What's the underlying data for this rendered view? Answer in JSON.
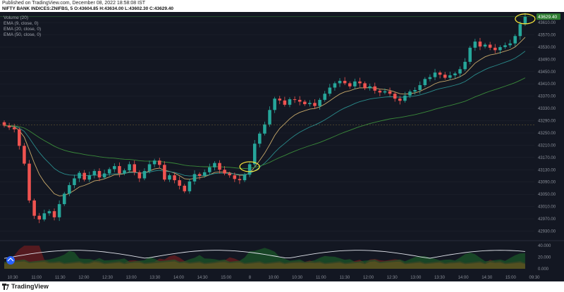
{
  "header": {
    "published": "Published on TradingView.com, December 08, 2022 18:58:08 IST",
    "symbol_line": "NIFTY BANK INDICES:ZNIFBS, 5  O:43604.85 H:43634.00 L:43602.30 C:43629.40"
  },
  "indicators": {
    "volume": "Volume (20)",
    "ema9": "EMA (9, close, 0)",
    "ema20": "EMA (20, close, 0)",
    "ema50": "EMA (50, close, 0)"
  },
  "colors": {
    "background": "#131722",
    "up": "#26a69a",
    "down": "#ef5350",
    "ema9": "#c8a96a",
    "ema20": "#2a8c8c",
    "ema50": "#3a8a3a",
    "price_line": "#2e7d32",
    "highlight": "#ffeb3b"
  },
  "chart_data": {
    "type": "candlestick",
    "y_ticks": [
      42930,
      42970,
      43010,
      43050,
      43090,
      43130,
      43170,
      43210,
      43250,
      43290,
      43330,
      43370,
      43410,
      43450,
      43490,
      43530,
      43570,
      43610
    ],
    "y_range": [
      42915,
      43640
    ],
    "last_price_label": "43629.40",
    "last_price": 43629.4,
    "x_tick_labels": [
      "10:30",
      "11:00",
      "11:30",
      "12:00",
      "12:30",
      "13:00",
      "13:30",
      "14:00",
      "14:30",
      "15:00",
      "8",
      "10:00",
      "10:30",
      "11:00",
      "11:30",
      "12:00",
      "12:30",
      "13:00",
      "13:30",
      "14:00",
      "14:30",
      "15:00",
      "09:30"
    ],
    "osc_ticks": [
      "40.000",
      "20.000",
      "0.000"
    ],
    "osc_range": [
      0,
      45
    ],
    "candle_closes": [
      43274,
      43268,
      43262,
      43208,
      43150,
      43030,
      42980,
      42968,
      42988,
      42995,
      42975,
      43018,
      43052,
      43080,
      43102,
      43120,
      43098,
      43112,
      43126,
      43105,
      43118,
      43132,
      43142,
      43118,
      43128,
      43148,
      43122,
      43102,
      43126,
      43148,
      43160,
      43146,
      43098,
      43112,
      43096,
      43078,
      43060,
      43092,
      43116,
      43110,
      43122,
      43138,
      43152,
      43130,
      43118,
      43112,
      43100,
      43096,
      43114,
      43148,
      43215,
      43248,
      43278,
      43325,
      43362,
      43356,
      43342,
      43360,
      43358,
      43352,
      43344,
      43348,
      43338,
      43358,
      43378,
      43398,
      43412,
      43420,
      43412,
      43402,
      43418,
      43412,
      43396,
      43402,
      43388,
      43382,
      43386,
      43378,
      43362,
      43355,
      43372,
      43385,
      43390,
      43406,
      43426,
      43432,
      43447,
      43440,
      43430,
      43438,
      43444,
      43458,
      43482,
      43528,
      43548,
      43532,
      43538,
      43528,
      43520,
      43530,
      43536,
      43542,
      43566,
      43605,
      43629.4
    ],
    "candle_opens": [
      43285,
      43274,
      43268,
      43262,
      43208,
      43150,
      43030,
      42980,
      42968,
      42988,
      42995,
      42975,
      43018,
      43052,
      43080,
      43102,
      43120,
      43098,
      43112,
      43126,
      43105,
      43118,
      43132,
      43142,
      43118,
      43128,
      43148,
      43122,
      43102,
      43126,
      43148,
      43160,
      43146,
      43098,
      43112,
      43096,
      43078,
      43060,
      43092,
      43116,
      43110,
      43122,
      43138,
      43152,
      43130,
      43118,
      43112,
      43100,
      43096,
      43114,
      43148,
      43215,
      43248,
      43278,
      43325,
      43362,
      43356,
      43342,
      43360,
      43358,
      43352,
      43344,
      43348,
      43338,
      43358,
      43378,
      43398,
      43412,
      43420,
      43412,
      43402,
      43418,
      43412,
      43396,
      43402,
      43388,
      43382,
      43386,
      43378,
      43362,
      43355,
      43372,
      43385,
      43390,
      43406,
      43426,
      43432,
      43447,
      43440,
      43430,
      43438,
      43444,
      43458,
      43482,
      43528,
      43548,
      43532,
      43538,
      43528,
      43520,
      43530,
      43536,
      43542,
      43566,
      43604.85
    ]
  }
}
